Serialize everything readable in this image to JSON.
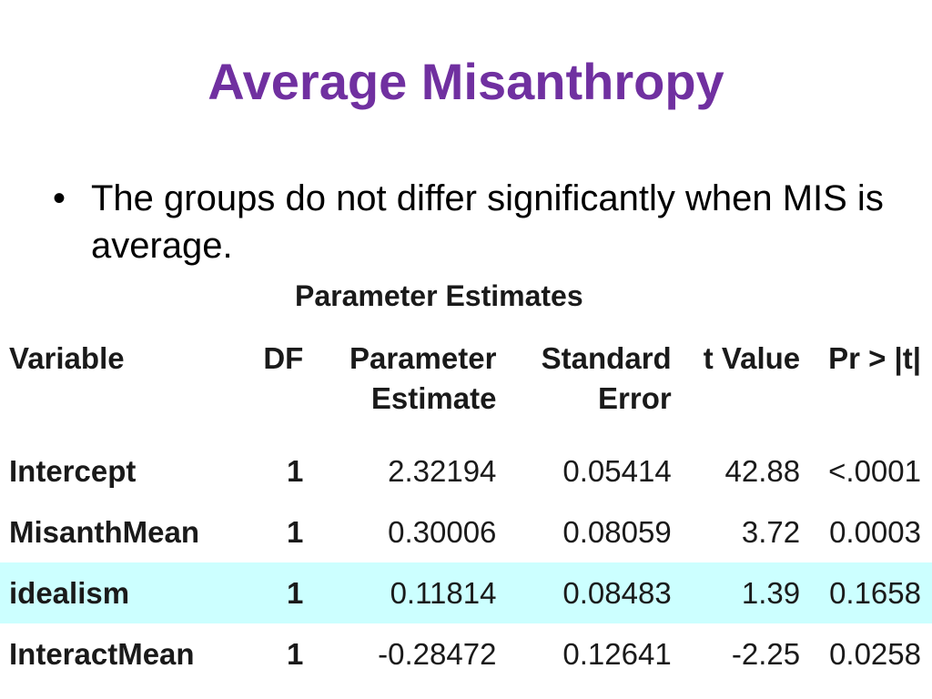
{
  "slide": {
    "title": "Average Misanthropy",
    "bullet_mark": "•",
    "bullet_text": "The groups do not differ significantly when MIS is average."
  },
  "table": {
    "caption": "Parameter Estimates",
    "headers": {
      "variable": "Variable",
      "df": "DF",
      "estimate_line1": "Parameter",
      "estimate_line2": "Estimate",
      "se_line1": "Standard",
      "se_line2": "Error",
      "t": "t Value",
      "p": "Pr > |t|"
    },
    "rows": [
      {
        "variable": "Intercept",
        "df": "1",
        "estimate": "2.32194",
        "se": "0.05414",
        "t": "42.88",
        "p": "<.0001",
        "highlighted": false
      },
      {
        "variable": "MisanthMean",
        "df": "1",
        "estimate": "0.30006",
        "se": "0.08059",
        "t": "3.72",
        "p": "0.0003",
        "highlighted": false
      },
      {
        "variable": "idealism",
        "df": "1",
        "estimate": "0.11814",
        "se": "0.08483",
        "t": "1.39",
        "p": "0.1658",
        "highlighted": true
      },
      {
        "variable": "InteractMean",
        "df": "1",
        "estimate": "-0.28472",
        "se": "0.12641",
        "t": "-2.25",
        "p": "0.0258",
        "highlighted": false
      }
    ],
    "highlight_color": "#ccffff"
  },
  "colors": {
    "title": "#7030a0"
  }
}
